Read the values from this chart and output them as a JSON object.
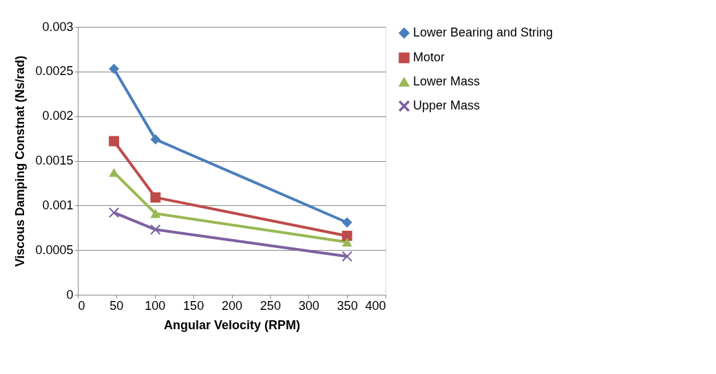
{
  "chart_data": {
    "type": "line",
    "xlabel": "Angular Velocity (RPM)",
    "ylabel": "Viscous Damping Constnat (Ns/rad)",
    "x": [
      47,
      101,
      350
    ],
    "series": [
      {
        "name": "Lower Bearing and String",
        "color": "#4a7ebb",
        "marker": "diamond",
        "values": [
          0.00253,
          0.00174,
          0.00081
        ]
      },
      {
        "name": "Motor",
        "color": "#be4b48",
        "marker": "square",
        "values": [
          0.00172,
          0.00109,
          0.00066
        ]
      },
      {
        "name": "Lower Mass",
        "color": "#98b954",
        "marker": "triangle",
        "values": [
          0.00137,
          0.00091,
          0.00059
        ]
      },
      {
        "name": "Upper Mass",
        "color": "#7d60a0",
        "marker": "cross",
        "values": [
          0.00092,
          0.00073,
          0.00043
        ]
      }
    ],
    "xlim": [
      0,
      400
    ],
    "xticks": [
      0,
      50,
      100,
      150,
      200,
      250,
      300,
      350,
      400
    ],
    "ylim": [
      0,
      0.003
    ],
    "yticks": [
      0,
      0.0005,
      0.001,
      0.0015,
      0.002,
      0.0025,
      0.003
    ],
    "grid": "y",
    "legend": "right",
    "line_style": "solid"
  }
}
